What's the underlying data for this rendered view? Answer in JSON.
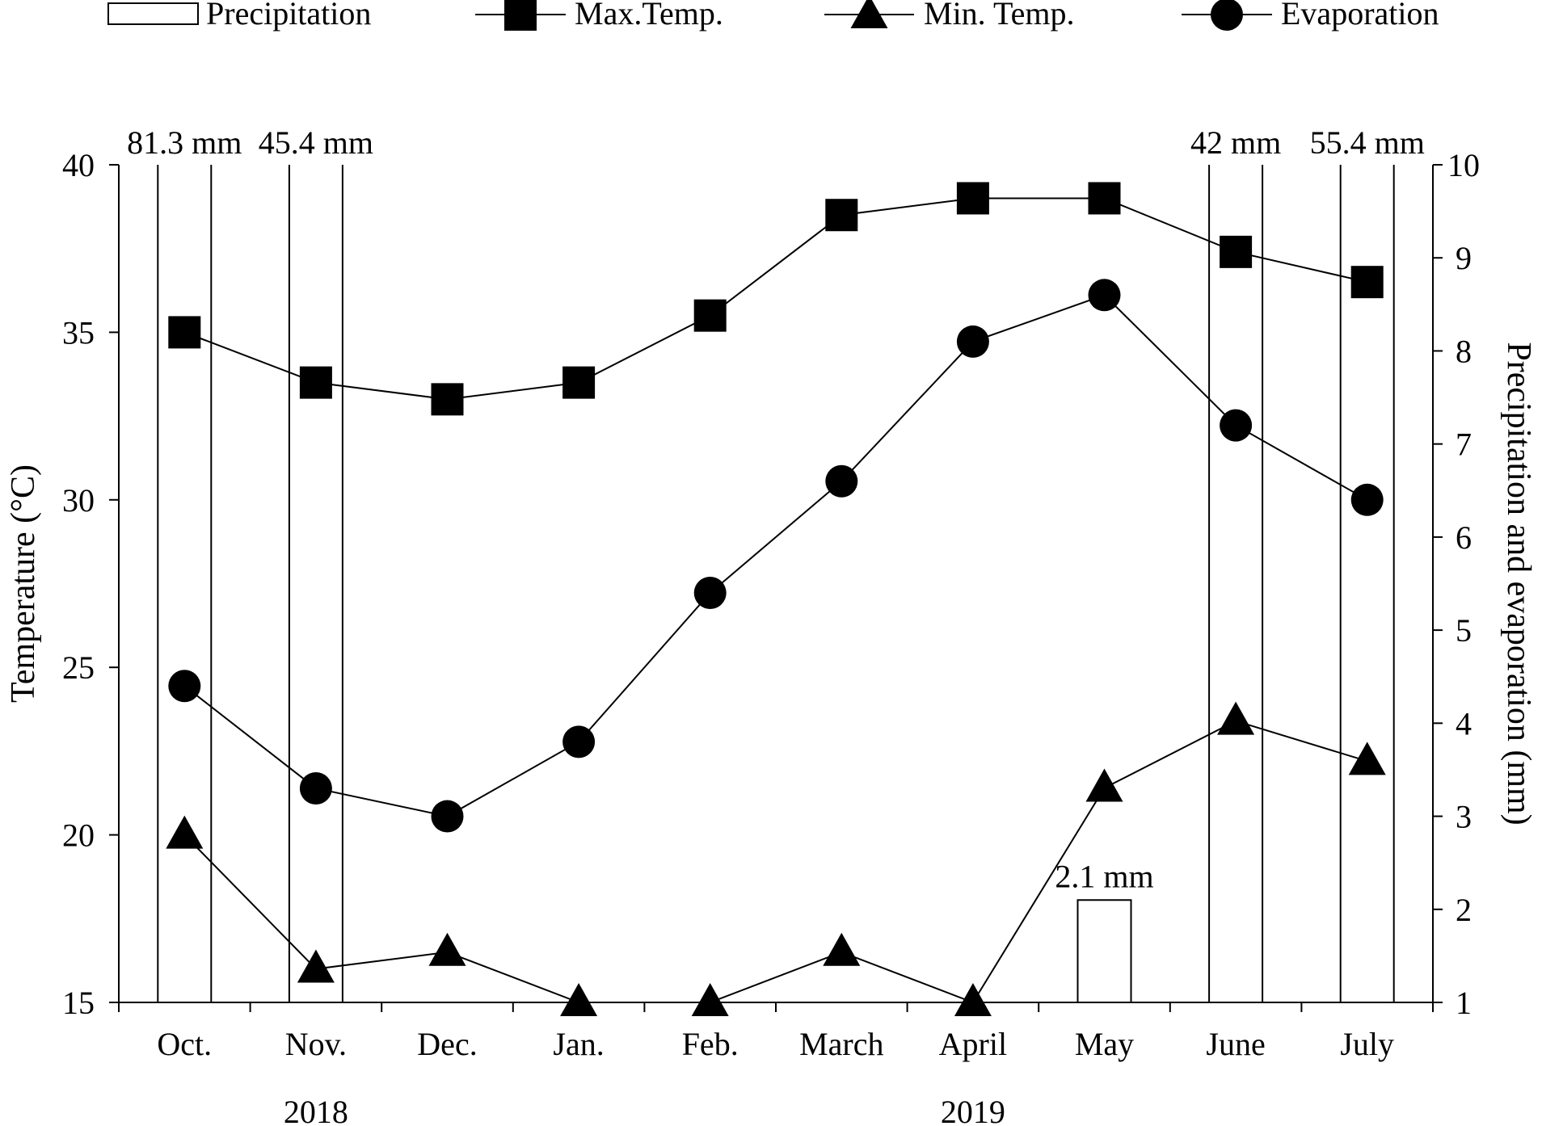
{
  "chart_data": {
    "type": "bar+line",
    "categories": [
      "Oct.",
      "Nov.",
      "Dec.",
      "Jan.",
      "Feb.",
      "March",
      "April",
      "May",
      "June",
      "July"
    ],
    "years": [
      {
        "label": "2018",
        "months": [
          "Oct.",
          "Nov.",
          "Dec."
        ]
      },
      {
        "label": "2019",
        "months": [
          "Jan.",
          "Feb.",
          "March",
          "April",
          "May",
          "June",
          "July"
        ]
      }
    ],
    "ylabel_left": "Temperature (°C)",
    "ylabel_right": "Precipitation and evaporation (mm)",
    "ylim_left": [
      15,
      40
    ],
    "ylim_right": [
      1,
      10
    ],
    "yticks_left": [
      15,
      20,
      25,
      30,
      35,
      40
    ],
    "yticks_right": [
      1,
      2,
      3,
      4,
      5,
      6,
      7,
      8,
      9,
      10
    ],
    "legend": [
      {
        "name": "Precipitation",
        "marker": "bar"
      },
      {
        "name": "Max.Temp.",
        "marker": "square"
      },
      {
        "name": "Min. Temp.",
        "marker": "triangle"
      },
      {
        "name": "Evaporation",
        "marker": "circle"
      }
    ],
    "precipitation": {
      "axis": "right",
      "values": [
        81.3,
        45.4,
        0,
        0,
        0,
        0,
        0,
        2.1,
        42,
        55.4
      ],
      "labels": [
        "81.3 mm",
        "45.4 mm",
        "",
        "",
        "",
        "",
        "",
        "2.1 mm",
        "42 mm",
        "55.4 mm"
      ]
    },
    "series": [
      {
        "name": "Max.Temp.",
        "axis": "left",
        "marker": "square",
        "values": [
          35,
          33.5,
          33,
          33.5,
          35.5,
          38.5,
          39,
          39,
          37.4,
          36.5
        ]
      },
      {
        "name": "Min. Temp.",
        "axis": "left",
        "marker": "triangle",
        "values": [
          20,
          16,
          16.5,
          15,
          15,
          16.5,
          15,
          21.4,
          23.4,
          22.2
        ]
      },
      {
        "name": "Evaporation",
        "axis": "right",
        "marker": "circle",
        "values": [
          4.4,
          3.3,
          3.0,
          3.8,
          5.4,
          6.6,
          8.1,
          8.6,
          7.2,
          6.4
        ]
      }
    ]
  }
}
